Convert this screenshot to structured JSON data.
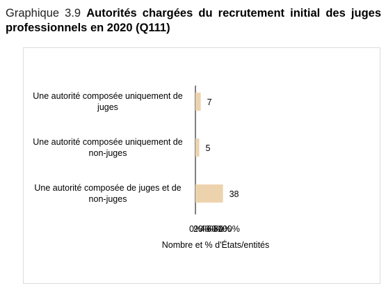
{
  "figure": {
    "number": "Graphique 3.9",
    "title": "Autorités chargées du recrutement initial des juges professionnels en 2020 (Q111)"
  },
  "chart_data": {
    "type": "bar",
    "orientation": "horizontal",
    "categories": [
      "Une autorité composée uniquement de juges",
      "Une autorité composée uniquement de non-juges",
      "Une autorité composée de juges et de non-juges"
    ],
    "category_lines": [
      [
        "Une autorité composée uniquement de",
        "juges"
      ],
      [
        "Une autorité composée uniquement de",
        "non-juges"
      ],
      [
        "Une autorité composée de juges et de",
        "non-juges"
      ]
    ],
    "values": [
      7,
      5,
      38
    ],
    "value_labels": [
      "7",
      "5",
      "38"
    ],
    "percent_values": [
      15.9,
      11.4,
      82.6
    ],
    "xlabel": "Nombre et % d'États/entités",
    "xlim": [
      0,
      100
    ],
    "x_ticks": [
      "0%",
      "20%",
      "40%",
      "60%",
      "80%",
      "100%"
    ],
    "bar_color": "#edd3ad",
    "grid": false,
    "legend": "none"
  }
}
